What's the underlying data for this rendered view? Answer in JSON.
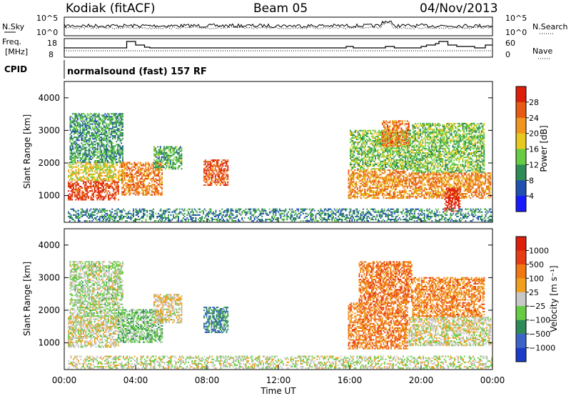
{
  "header": {
    "title": "Kodiak (fitACF)",
    "beam": "Beam 05",
    "date": "04/Nov/2013"
  },
  "noise_panel": {
    "left_label": "N.Sky",
    "right_label": "N.Search",
    "left_ticks": [
      "10^5",
      "10^0"
    ],
    "right_ticks": [
      "10^5",
      "10^0"
    ]
  },
  "freq_panel": {
    "left_label_1": "Freq.",
    "left_label_2": "[MHz]",
    "right_label": "Nave",
    "left_ticks": [
      "18",
      "8"
    ],
    "right_ticks": [
      "60",
      "0"
    ]
  },
  "cpid": {
    "label": "CPID",
    "text": "normalsound (fast) 157 RF"
  },
  "colors": {
    "power": [
      "#1a1aff",
      "#2050b0",
      "#2e8b57",
      "#66cc44",
      "#e6c81e",
      "#f0961e",
      "#e65a14",
      "#dc1e0a"
    ],
    "velocity": [
      "#1a3cc8",
      "#3c64c8",
      "#2e8b57",
      "#66cc44",
      "#c8c8c8",
      "#f0a01e",
      "#f07814",
      "#e63c14",
      "#dc1e0a"
    ]
  },
  "power_scale": {
    "label": "Power [dB]",
    "ticks": [
      "28",
      "24",
      "20",
      "16",
      "12",
      "8",
      "4"
    ]
  },
  "velocity_scale": {
    "label": "Velocity [m s⁻¹]",
    "ticks": [
      "1000",
      "500",
      "100",
      "25",
      "−25",
      "−100",
      "−500",
      "−1000"
    ]
  },
  "chart_data": {
    "type": "heatmap",
    "xlabel": "Time UT",
    "x_ticks": [
      "00:00",
      "04:00",
      "08:00",
      "12:00",
      "16:00",
      "20:00",
      "00:00"
    ],
    "xlim": [
      0,
      24
    ],
    "ylabel": "Slant Range [km]",
    "y_ticks": [
      4000,
      3000,
      2000,
      1000
    ],
    "ylim": [
      180,
      4500
    ],
    "freq_steps": [
      [
        0,
        13
      ],
      [
        3.4,
        13
      ],
      [
        3.5,
        17.5
      ],
      [
        4.0,
        15
      ],
      [
        4.5,
        13.5
      ],
      [
        4.8,
        13
      ],
      [
        11.0,
        13
      ],
      [
        12.5,
        13
      ],
      [
        15.6,
        13
      ],
      [
        15.8,
        14
      ],
      [
        16.2,
        13
      ],
      [
        17.8,
        13
      ],
      [
        18.0,
        14
      ],
      [
        18.5,
        13
      ],
      [
        19.8,
        13
      ],
      [
        20.0,
        14
      ],
      [
        20.3,
        15
      ],
      [
        20.8,
        16
      ],
      [
        21.0,
        17.5
      ],
      [
        21.5,
        15
      ],
      [
        22.0,
        14
      ],
      [
        22.3,
        14
      ],
      [
        23.0,
        13
      ],
      [
        23.6,
        15
      ],
      [
        24,
        15
      ]
    ],
    "power_blobs": [
      {
        "t0": 0.2,
        "t1": 3.0,
        "r0": 850,
        "r1": 1450,
        "level": 6.5
      },
      {
        "t0": 0.2,
        "t1": 3.4,
        "r0": 1450,
        "r1": 2000,
        "level": 4
      },
      {
        "t0": 0.3,
        "t1": 3.3,
        "r0": 2000,
        "r1": 3500,
        "level": 2.2
      },
      {
        "t0": 3.2,
        "t1": 5.5,
        "r0": 1000,
        "r1": 2000,
        "level": 5.5
      },
      {
        "t0": 5.0,
        "t1": 6.6,
        "r0": 1800,
        "r1": 2500,
        "level": 2.5
      },
      {
        "t0": 7.8,
        "t1": 9.2,
        "r0": 1300,
        "r1": 2100,
        "level": 6.2
      },
      {
        "t0": 15.9,
        "t1": 19.2,
        "r0": 900,
        "r1": 1800,
        "level": 5.2
      },
      {
        "t0": 16.0,
        "t1": 19.5,
        "r0": 1800,
        "r1": 3000,
        "level": 3
      },
      {
        "t0": 17.8,
        "t1": 19.3,
        "r0": 2500,
        "r1": 3300,
        "level": 5.5
      },
      {
        "t0": 19.3,
        "t1": 23.9,
        "r0": 900,
        "r1": 1700,
        "level": 5.3
      },
      {
        "t0": 19.5,
        "t1": 23.5,
        "r0": 1700,
        "r1": 3200,
        "level": 3
      },
      {
        "t0": 21.3,
        "t1": 22.2,
        "r0": 500,
        "r1": 1200,
        "level": 7.3
      },
      {
        "t0": 0.2,
        "t1": 24.0,
        "r0": 200,
        "r1": 600,
        "level": 1.8
      }
    ],
    "velocity_blobs": [
      {
        "t0": 0.2,
        "t1": 3.0,
        "r0": 850,
        "r1": 1800,
        "level": 4.1
      },
      {
        "t0": 0.3,
        "t1": 3.3,
        "r0": 1800,
        "r1": 3500,
        "level": 3.6
      },
      {
        "t0": 3.0,
        "t1": 5.5,
        "r0": 1000,
        "r1": 2000,
        "level": 3
      },
      {
        "t0": 5.0,
        "t1": 6.6,
        "r0": 1600,
        "r1": 2500,
        "level": 4.3
      },
      {
        "t0": 7.8,
        "t1": 9.2,
        "r0": 1300,
        "r1": 2100,
        "level": 1.8
      },
      {
        "t0": 15.9,
        "t1": 19.2,
        "r0": 800,
        "r1": 2200,
        "level": 5.9
      },
      {
        "t0": 16.5,
        "t1": 19.5,
        "r0": 2200,
        "r1": 3500,
        "level": 6.1
      },
      {
        "t0": 19.3,
        "t1": 23.9,
        "r0": 900,
        "r1": 1800,
        "level": 4.1
      },
      {
        "t0": 19.5,
        "t1": 23.5,
        "r0": 1800,
        "r1": 3000,
        "level": 5.8
      },
      {
        "t0": 0.2,
        "t1": 24.0,
        "r0": 200,
        "r1": 600,
        "level": 3.9
      }
    ]
  }
}
